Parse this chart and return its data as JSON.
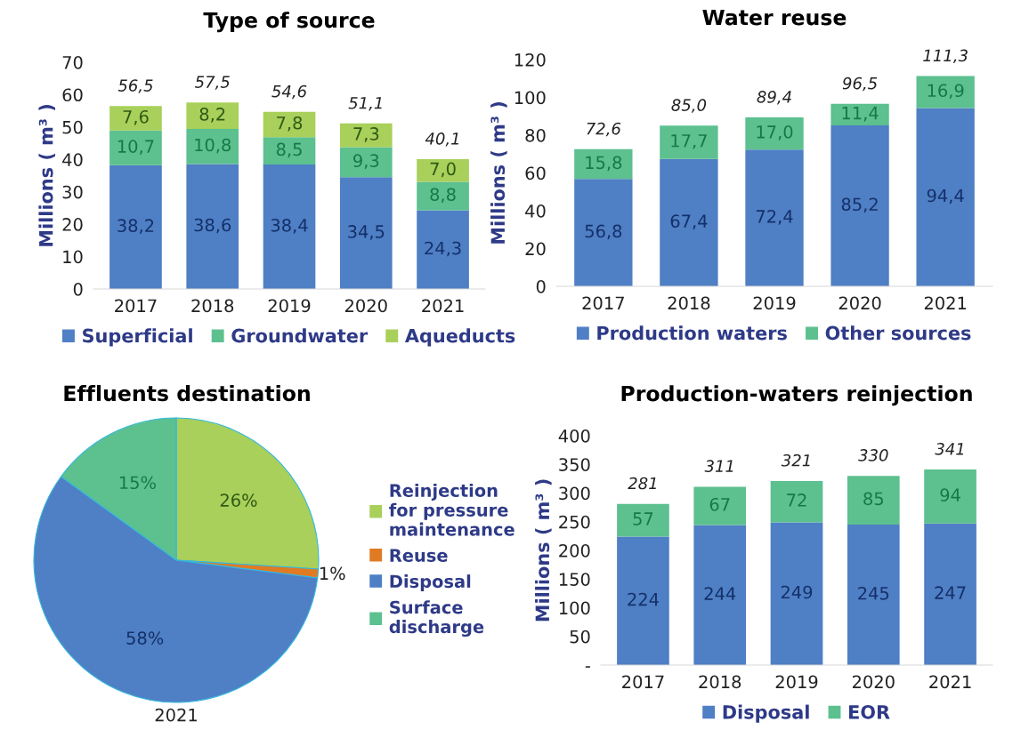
{
  "chart_data": [
    {
      "type": "bar",
      "title": "Type of source",
      "ylabel": "Millions ( m³ )",
      "categories": [
        "2017",
        "2018",
        "2019",
        "2020",
        "2021"
      ],
      "stacked": true,
      "ylim": [
        0,
        70
      ],
      "yticks": [
        0,
        10,
        20,
        30,
        40,
        50,
        60,
        70
      ],
      "legend": "bottom",
      "series": [
        {
          "name": "Superficial",
          "color": "#4f7fc4",
          "values": [
            38.2,
            38.6,
            38.4,
            34.5,
            24.3
          ],
          "value_labels": [
            "38,2",
            "38,6",
            "38,4",
            "34,5",
            "24,3"
          ]
        },
        {
          "name": "Groundwater",
          "color": "#5cc08f",
          "values": [
            10.7,
            10.8,
            8.5,
            9.3,
            8.8
          ],
          "value_labels": [
            "10,7",
            "10,8",
            "8,5",
            "9,3",
            "8,8"
          ]
        },
        {
          "name": "Aqueducts",
          "color": "#a8d05a",
          "values": [
            7.6,
            8.2,
            7.8,
            7.3,
            7.0
          ],
          "value_labels": [
            "7,6",
            "8,2",
            "7,8",
            "7,3",
            "7,0"
          ]
        }
      ],
      "totals": [
        "56,5",
        "57,5",
        "54,6",
        "51,1",
        "40,1"
      ]
    },
    {
      "type": "bar",
      "title": "Water reuse",
      "ylabel": "Millions ( m³ )",
      "categories": [
        "2017",
        "2018",
        "2019",
        "2020",
        "2021"
      ],
      "stacked": true,
      "ylim": [
        0,
        120
      ],
      "yticks": [
        0,
        20,
        40,
        60,
        80,
        100,
        120
      ],
      "legend": "bottom",
      "series": [
        {
          "name": "Production waters",
          "color": "#4f7fc4",
          "values": [
            56.8,
            67.4,
            72.4,
            85.2,
            94.4
          ],
          "value_labels": [
            "56,8",
            "67,4",
            "72,4",
            "85,2",
            "94,4"
          ]
        },
        {
          "name": "Other sources",
          "color": "#5cc08f",
          "values": [
            15.8,
            17.7,
            17.0,
            11.4,
            16.9
          ],
          "value_labels": [
            "15,8",
            "17,7",
            "17,0",
            "11,4",
            "16,9"
          ]
        }
      ],
      "totals": [
        "72,6",
        "85,0",
        "89,4",
        "96,5",
        "111,3"
      ]
    },
    {
      "type": "pie",
      "title": "Effluents destination",
      "xlabel": "2021",
      "legend": "right",
      "categories": [
        "Reinjection for pressure maintenance",
        "Reuse",
        "Disposal",
        "Surface discharge"
      ],
      "values": [
        26,
        1,
        58,
        15
      ],
      "colors": [
        "#a8d05a",
        "#e07b24",
        "#4f7fc4",
        "#5cc08f"
      ],
      "value_labels": [
        "26%",
        "1%",
        "58%",
        "15%"
      ]
    },
    {
      "type": "bar",
      "title": "Production-waters reinjection",
      "ylabel": "Millions ( m³ )",
      "categories": [
        "2017",
        "2018",
        "2019",
        "2020",
        "2021"
      ],
      "stacked": true,
      "ylim": [
        0,
        400
      ],
      "yticks": [
        {
          "value": 0,
          "label": "-"
        },
        50,
        100,
        150,
        200,
        250,
        300,
        350,
        400
      ],
      "legend": "bottom",
      "series": [
        {
          "name": "Disposal",
          "color": "#4f7fc4",
          "values": [
            224,
            244,
            249,
            245,
            247
          ],
          "value_labels": [
            "224",
            "244",
            "249",
            "245",
            "247"
          ]
        },
        {
          "name": "EOR",
          "color": "#5cc08f",
          "values": [
            57,
            67,
            72,
            85,
            94
          ],
          "value_labels": [
            "57",
            "67",
            "72",
            "85",
            "94"
          ]
        }
      ],
      "totals": [
        "281",
        "311",
        "321",
        "330",
        "341"
      ]
    }
  ]
}
